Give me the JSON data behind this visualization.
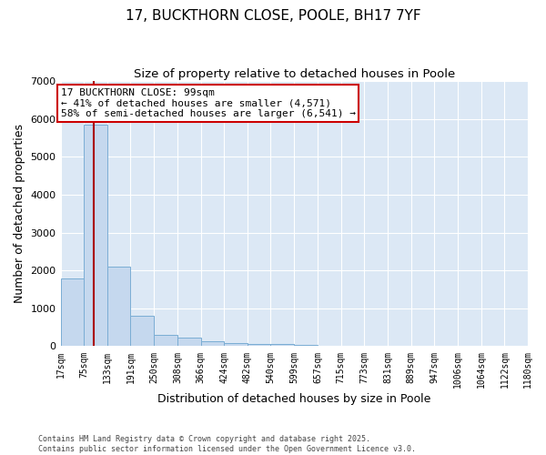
{
  "title": "17, BUCKTHORN CLOSE, POOLE, BH17 7YF",
  "subtitle": "Size of property relative to detached houses in Poole",
  "xlabel": "Distribution of detached houses by size in Poole",
  "ylabel": "Number of detached properties",
  "bar_color": "#c5d8ee",
  "bar_edge_color": "#7aadd4",
  "background_color": "#dce8f5",
  "fig_background": "#ffffff",
  "bin_edges": [
    17,
    75,
    133,
    191,
    250,
    308,
    366,
    424,
    482,
    540,
    599,
    657,
    715,
    773,
    831,
    889,
    947,
    1006,
    1064,
    1122,
    1180
  ],
  "bar_heights": [
    1800,
    5850,
    2100,
    800,
    310,
    230,
    130,
    80,
    60,
    50,
    30,
    20,
    10,
    10,
    10,
    5,
    3,
    2,
    2,
    2
  ],
  "property_size": 99,
  "vline_color": "#aa0000",
  "annotation_text": "17 BUCKTHORN CLOSE: 99sqm\n← 41% of detached houses are smaller (4,571)\n58% of semi-detached houses are larger (6,541) →",
  "annotation_box_color": "#cc0000",
  "ylim": [
    0,
    7000
  ],
  "yticks": [
    0,
    1000,
    2000,
    3000,
    4000,
    5000,
    6000,
    7000
  ],
  "footer_line1": "Contains HM Land Registry data © Crown copyright and database right 2025.",
  "footer_line2": "Contains public sector information licensed under the Open Government Licence v3.0.",
  "grid_color": "#ffffff",
  "title_fontsize": 11,
  "subtitle_fontsize": 9.5,
  "tick_label_fontsize": 7,
  "ylabel_fontsize": 9,
  "xlabel_fontsize": 9,
  "annotation_fontsize": 8,
  "footer_fontsize": 6
}
